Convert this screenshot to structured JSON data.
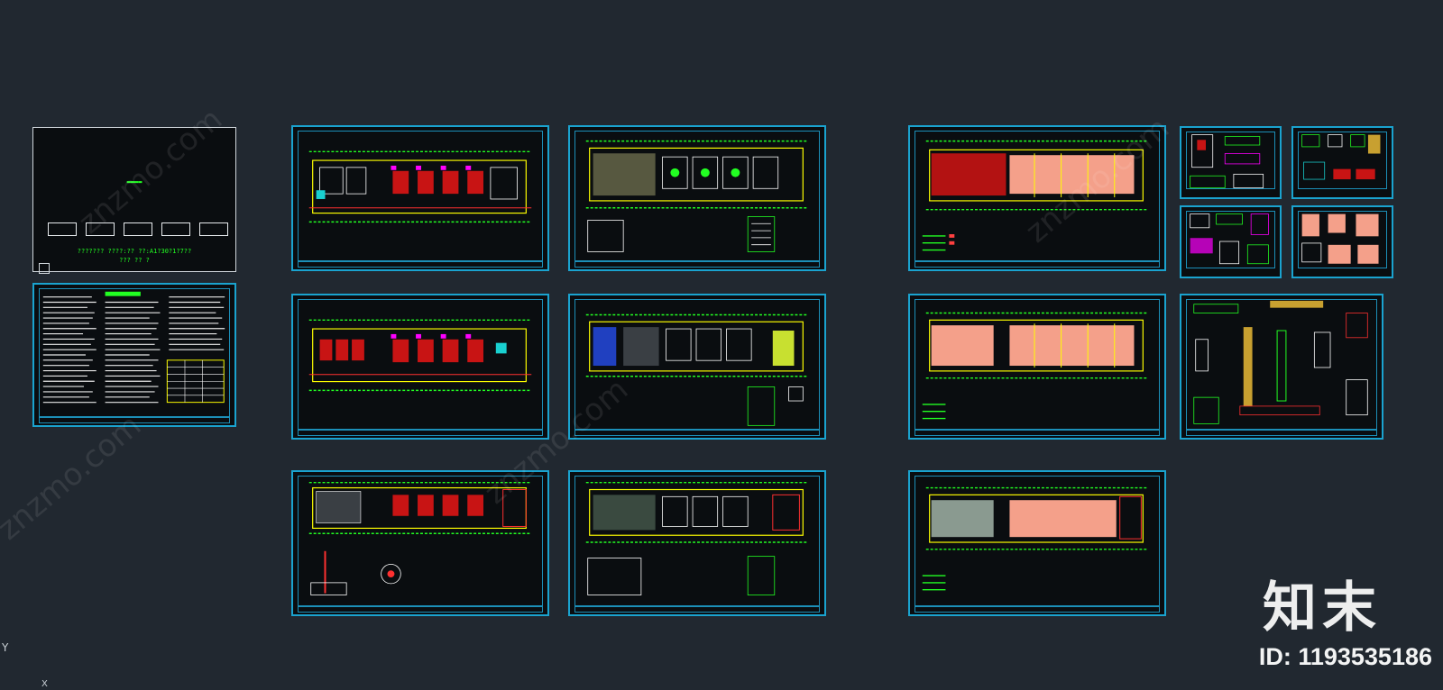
{
  "viewport": {
    "background": "#212830"
  },
  "cover": {
    "title_line": "??????? ????:?? ??:A1?30?1?7??",
    "sub_line": "??? ?? ?"
  },
  "colors": {
    "frame": "#1aa3cf",
    "wall": "#ffff00",
    "dimension": "#22ff22",
    "grid_line": "#ff3030",
    "furniture": "#ff00ff",
    "fill_salmon": "#f4a08a",
    "fill_red": "#b31212"
  },
  "brand": {
    "logo_text": "知末",
    "id_text": "ID: 1193535186",
    "watermark": "znzmo.com"
  },
  "axis": {
    "y": "Y",
    "x": "X"
  }
}
